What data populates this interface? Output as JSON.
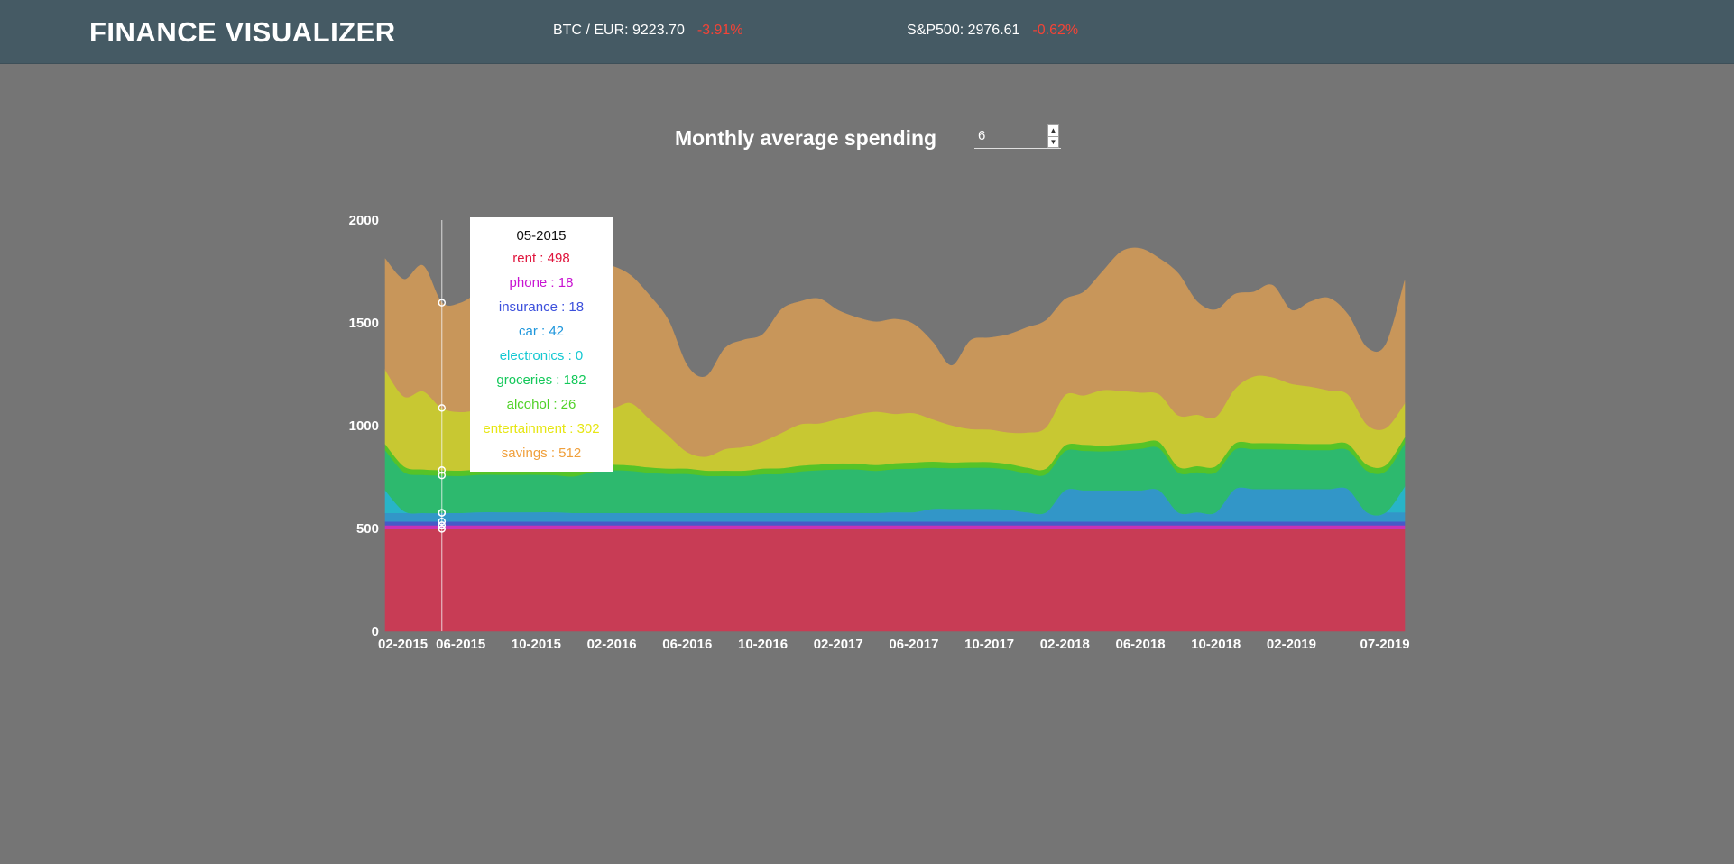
{
  "app": {
    "title": "FINANCE VISUALIZER"
  },
  "tickers": [
    {
      "label": "BTC / EUR: 9223.70",
      "change": "-3.91%"
    },
    {
      "label": "S&P500: 2976.61",
      "change": "-0.62%"
    }
  ],
  "controls": {
    "label": "Monthly average spending",
    "months_value": "6"
  },
  "icons": {
    "stepper_up": "chevron-up-icon",
    "stepper_down": "chevron-down-icon"
  },
  "colors": {
    "header": "#455a64",
    "background": "#757575",
    "negative_change": "#f44336"
  },
  "tooltip": {
    "title": "05-2015",
    "rows": [
      {
        "text": "rent : 498",
        "color": "#e0143c"
      },
      {
        "text": "phone : 18",
        "color": "#c814d2"
      },
      {
        "text": "insurance : 18",
        "color": "#3c50dc"
      },
      {
        "text": "car : 42",
        "color": "#1e96dc"
      },
      {
        "text": "electronics : 0",
        "color": "#14c8d2"
      },
      {
        "text": "groceries : 182",
        "color": "#14c85a"
      },
      {
        "text": "alcohol : 26",
        "color": "#50d228"
      },
      {
        "text": "entertainment : 302",
        "color": "#e6e614"
      },
      {
        "text": "savings : 512",
        "color": "#f0a03c"
      }
    ]
  },
  "chart_data": {
    "type": "area",
    "stacked": true,
    "title": "",
    "xlabel": "",
    "ylabel": "",
    "ylim": [
      0,
      2000
    ],
    "yticks": [
      0,
      500,
      1000,
      1500,
      2000
    ],
    "x_tick_labels": [
      "02-2015",
      "06-2015",
      "10-2015",
      "02-2016",
      "06-2016",
      "10-2016",
      "02-2017",
      "06-2017",
      "10-2017",
      "02-2018",
      "06-2018",
      "10-2018",
      "02-2019",
      "07-2019"
    ],
    "x": [
      "02-2015",
      "03-2015",
      "04-2015",
      "05-2015",
      "06-2015",
      "07-2015",
      "08-2015",
      "09-2015",
      "10-2015",
      "11-2015",
      "12-2015",
      "01-2016",
      "02-2016",
      "03-2016",
      "04-2016",
      "05-2016",
      "06-2016",
      "07-2016",
      "08-2016",
      "09-2016",
      "10-2016",
      "11-2016",
      "12-2016",
      "01-2017",
      "02-2017",
      "03-2017",
      "04-2017",
      "05-2017",
      "06-2017",
      "07-2017",
      "08-2017",
      "09-2017",
      "10-2017",
      "11-2017",
      "12-2017",
      "01-2018",
      "02-2018",
      "03-2018",
      "04-2018",
      "05-2018",
      "06-2018",
      "07-2018",
      "08-2018",
      "09-2018",
      "10-2018",
      "11-2018",
      "12-2018",
      "01-2019",
      "02-2019",
      "03-2019",
      "04-2019",
      "05-2019",
      "06-2019",
      "07-2019",
      "08-2019"
    ],
    "series": [
      {
        "name": "rent",
        "color": "#c83c55",
        "values": [
          498,
          498,
          498,
          498,
          498,
          498,
          498,
          498,
          498,
          498,
          498,
          498,
          498,
          498,
          498,
          498,
          498,
          498,
          498,
          498,
          498,
          498,
          498,
          498,
          498,
          498,
          498,
          498,
          498,
          498,
          498,
          498,
          498,
          498,
          498,
          498,
          498,
          498,
          498,
          498,
          498,
          498,
          498,
          498,
          498,
          498,
          498,
          498,
          498,
          498,
          498,
          498,
          498,
          498,
          498
        ]
      },
      {
        "name": "phone",
        "color": "#c832b4",
        "values": [
          18,
          18,
          18,
          18,
          18,
          18,
          18,
          18,
          18,
          18,
          18,
          18,
          18,
          18,
          18,
          18,
          18,
          18,
          18,
          18,
          18,
          18,
          18,
          18,
          18,
          18,
          18,
          18,
          18,
          18,
          18,
          18,
          18,
          18,
          18,
          18,
          18,
          18,
          18,
          18,
          18,
          18,
          18,
          18,
          18,
          18,
          18,
          18,
          18,
          18,
          18,
          18,
          18,
          18,
          18
        ]
      },
      {
        "name": "insurance",
        "color": "#465ac8",
        "values": [
          18,
          18,
          18,
          18,
          18,
          18,
          18,
          18,
          18,
          18,
          18,
          18,
          18,
          18,
          18,
          18,
          18,
          18,
          18,
          18,
          18,
          18,
          18,
          18,
          18,
          18,
          18,
          18,
          18,
          18,
          18,
          18,
          18,
          18,
          18,
          18,
          18,
          18,
          18,
          18,
          18,
          18,
          18,
          18,
          18,
          18,
          18,
          18,
          18,
          18,
          18,
          18,
          18,
          18,
          18
        ]
      },
      {
        "name": "car",
        "color": "#3296c8",
        "values": [
          42,
          42,
          42,
          42,
          42,
          46,
          46,
          46,
          46,
          46,
          42,
          42,
          42,
          42,
          42,
          42,
          42,
          42,
          42,
          42,
          42,
          42,
          42,
          42,
          42,
          42,
          42,
          46,
          46,
          62,
          62,
          62,
          62,
          58,
          45,
          45,
          152,
          152,
          152,
          152,
          152,
          152,
          45,
          45,
          45,
          158,
          158,
          158,
          158,
          158,
          158,
          158,
          45,
          45,
          45
        ]
      },
      {
        "name": "electronics",
        "color": "#28b4c8",
        "values": [
          110,
          8,
          0,
          0,
          0,
          0,
          0,
          0,
          0,
          0,
          0,
          0,
          0,
          0,
          0,
          0,
          0,
          0,
          0,
          0,
          0,
          0,
          0,
          0,
          0,
          0,
          0,
          0,
          0,
          0,
          0,
          0,
          0,
          0,
          0,
          0,
          0,
          0,
          0,
          0,
          0,
          0,
          0,
          0,
          0,
          0,
          0,
          0,
          0,
          0,
          0,
          0,
          0,
          0,
          125
        ]
      },
      {
        "name": "groceries",
        "color": "#2db96e",
        "values": [
          195,
          190,
          185,
          182,
          180,
          182,
          182,
          182,
          182,
          180,
          178,
          200,
          208,
          205,
          196,
          190,
          190,
          180,
          180,
          180,
          188,
          190,
          202,
          208,
          212,
          212,
          205,
          210,
          212,
          200,
          198,
          200,
          200,
          195,
          190,
          185,
          190,
          192,
          190,
          194,
          202,
          205,
          194,
          195,
          195,
          192,
          194,
          194,
          192,
          190,
          190,
          190,
          202,
          200,
          210
        ]
      },
      {
        "name": "alcohol",
        "color": "#55c328",
        "values": [
          30,
          28,
          27,
          26,
          26,
          26,
          26,
          26,
          26,
          26,
          26,
          26,
          27,
          26,
          26,
          26,
          26,
          26,
          26,
          26,
          28,
          28,
          28,
          28,
          28,
          28,
          28,
          28,
          30,
          30,
          28,
          28,
          28,
          28,
          28,
          28,
          28,
          30,
          28,
          30,
          30,
          30,
          28,
          30,
          30,
          30,
          30,
          30,
          30,
          30,
          30,
          30,
          30,
          30,
          30
        ]
      },
      {
        "name": "entertainment",
        "color": "#c8c832",
        "values": [
          360,
          340,
          380,
          302,
          285,
          290,
          298,
          290,
          295,
          310,
          320,
          320,
          276,
          304,
          235,
          160,
          80,
          68,
          105,
          115,
          132,
          172,
          202,
          200,
          218,
          240,
          260,
          240,
          240,
          205,
          180,
          160,
          158,
          153,
          170,
          200,
          245,
          240,
          270,
          260,
          244,
          232,
          250,
          250,
          240,
          265,
          324,
          320,
          290,
          279,
          260,
          240,
          195,
          180,
          165
        ]
      },
      {
        "name": "savings",
        "color": "#c8965a",
        "values": [
          540,
          570,
          610,
          512,
          530,
          570,
          580,
          590,
          600,
          620,
          640,
          670,
          690,
          620,
          600,
          560,
          420,
          390,
          490,
          520,
          520,
          600,
          596,
          605,
          526,
          470,
          436,
          460,
          431,
          375,
          290,
          430,
          445,
          475,
          510,
          520,
          465,
          502,
          576,
          677,
          700,
          660,
          690,
          550,
          520,
          460,
          410,
          447,
          358,
          411,
          448,
          388,
          374,
          406,
          596
        ]
      }
    ],
    "hover": {
      "date": "05-2015",
      "values": {
        "rent": 498,
        "phone": 18,
        "insurance": 18,
        "car": 42,
        "electronics": 0,
        "groceries": 182,
        "alcohol": 26,
        "entertainment": 302,
        "savings": 512
      }
    },
    "gridlines": false,
    "legend": "none"
  }
}
